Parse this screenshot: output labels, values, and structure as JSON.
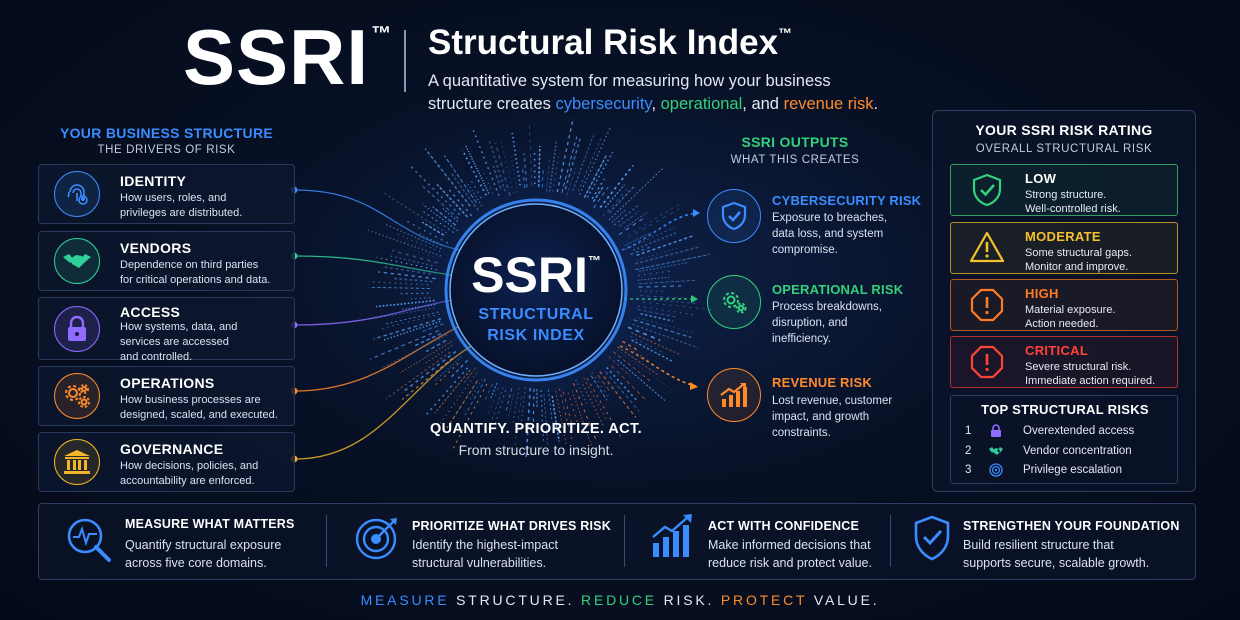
{
  "header": {
    "brand": "SSRI",
    "brand_tm": "™",
    "title": "Structural Risk Index",
    "title_tm": "™",
    "subtitle_line1": "A quantitative system for measuring how your business",
    "subtitle_line2_start": "structure creates ",
    "subtitle_cyber": "cybersecurity",
    "subtitle_comma": ", ",
    "subtitle_operational": "operational",
    "subtitle_and": ", and ",
    "subtitle_revenue": "revenue risk",
    "subtitle_end": "."
  },
  "drivers": {
    "heading": "YOUR BUSINESS STRUCTURE",
    "subheading": "THE DRIVERS OF RISK",
    "items": [
      {
        "title": "IDENTITY",
        "l1": "How users, roles, and",
        "l2": "privileges are distributed.",
        "l3": "",
        "icon": "fingerprint-icon",
        "color": "#3b8cff"
      },
      {
        "title": "VENDORS",
        "l1": "Dependence on third parties",
        "l2": "for critical operations and data.",
        "l3": "",
        "icon": "handshake-icon",
        "color": "#2fd19a"
      },
      {
        "title": "ACCESS",
        "l1": "How systems, data, and",
        "l2": "services are accessed",
        "l3": "and controlled.",
        "icon": "lock-icon",
        "color": "#8f6bff"
      },
      {
        "title": "OPERATIONS",
        "l1": "How business processes are",
        "l2": "designed, scaled, and executed.",
        "l3": "",
        "icon": "gears-icon",
        "color": "#ff8a2a"
      },
      {
        "title": "GOVERNANCE",
        "l1": "How decisions, policies, and",
        "l2": "accountability are enforced.",
        "l3": "",
        "icon": "institution-icon",
        "color": "#f3b528"
      }
    ]
  },
  "core": {
    "name": "SSRI",
    "tm": "™",
    "line1": "STRUCTURAL",
    "line2": "RISK INDEX",
    "tagline": "QUANTIFY. PRIORITIZE. ACT.",
    "tagline_sub": "From structure to insight."
  },
  "outputs": {
    "heading": "SSRI OUTPUTS",
    "subheading": "WHAT THIS CREATES",
    "items": [
      {
        "title": "CYBERSECURITY RISK",
        "l1": "Exposure to breaches,",
        "l2": "data loss, and system",
        "l3": "compromise.",
        "icon": "shield-check-icon",
        "color": "#3b8cff"
      },
      {
        "title": "OPERATIONAL RISK",
        "l1": "Process breakdowns,",
        "l2": "disruption, and",
        "l3": "inefficiency.",
        "icon": "gears-icon",
        "color": "#34d17c"
      },
      {
        "title": "REVENUE RISK",
        "l1": "Lost revenue, customer",
        "l2": "impact, and growth",
        "l3": "constraints.",
        "icon": "bar-chart-icon",
        "color": "#ff8a2a"
      }
    ]
  },
  "rating": {
    "heading": "YOUR SSRI RISK RATING",
    "subheading": "OVERALL STRUCTURAL RISK",
    "levels": [
      {
        "title": "LOW",
        "l1": "Strong structure.",
        "l2": "Well-controlled risk.",
        "color": "#34d17c"
      },
      {
        "title": "MODERATE",
        "l1": "Some structural gaps.",
        "l2": "Monitor and improve.",
        "color": "#f3c12a"
      },
      {
        "title": "HIGH",
        "l1": "Material exposure.",
        "l2": "Action needed.",
        "color": "#ff7a22"
      },
      {
        "title": "CRITICAL",
        "l1": "Severe structural risk.",
        "l2": "Immediate action required.",
        "color": "#ff4436"
      }
    ],
    "top_heading": "TOP STRUCTURAL RISKS",
    "top": [
      {
        "num": "1",
        "label": "Overextended access",
        "icon": "lock-icon"
      },
      {
        "num": "2",
        "label": "Vendor concentration",
        "icon": "handshake-icon"
      },
      {
        "num": "3",
        "label": "Privilege escalation",
        "icon": "fingerprint-icon"
      }
    ]
  },
  "benefits": [
    {
      "title": "MEASURE WHAT MATTERS",
      "l1": "Quantify structural exposure",
      "l2": "across five core domains.",
      "icon": "magnifier-pulse-icon"
    },
    {
      "title": "PRIORITIZE WHAT DRIVES RISK",
      "l1": "Identify the highest-impact",
      "l2": "structural vulnerabilities.",
      "icon": "target-icon"
    },
    {
      "title": "ACT WITH CONFIDENCE",
      "l1": "Make informed decisions that",
      "l2": "reduce risk and protect value.",
      "icon": "growth-chart-icon"
    },
    {
      "title": "STRENGTHEN YOUR FOUNDATION",
      "l1": "Build resilient structure that",
      "l2": "supports secure, scalable growth.",
      "icon": "shield-check-icon"
    }
  ],
  "footer": {
    "w1": "MEASURE",
    "w2": " STRUCTURE. ",
    "w3": "REDUCE",
    "w4": " RISK. ",
    "w5": "PROTECT",
    "w6": " VALUE."
  },
  "colors": {
    "blue": "#3b8cff",
    "green": "#34d17c",
    "orange": "#ff8a2a",
    "purple": "#8f6bff",
    "gold": "#f3b528",
    "red": "#ff4436"
  }
}
